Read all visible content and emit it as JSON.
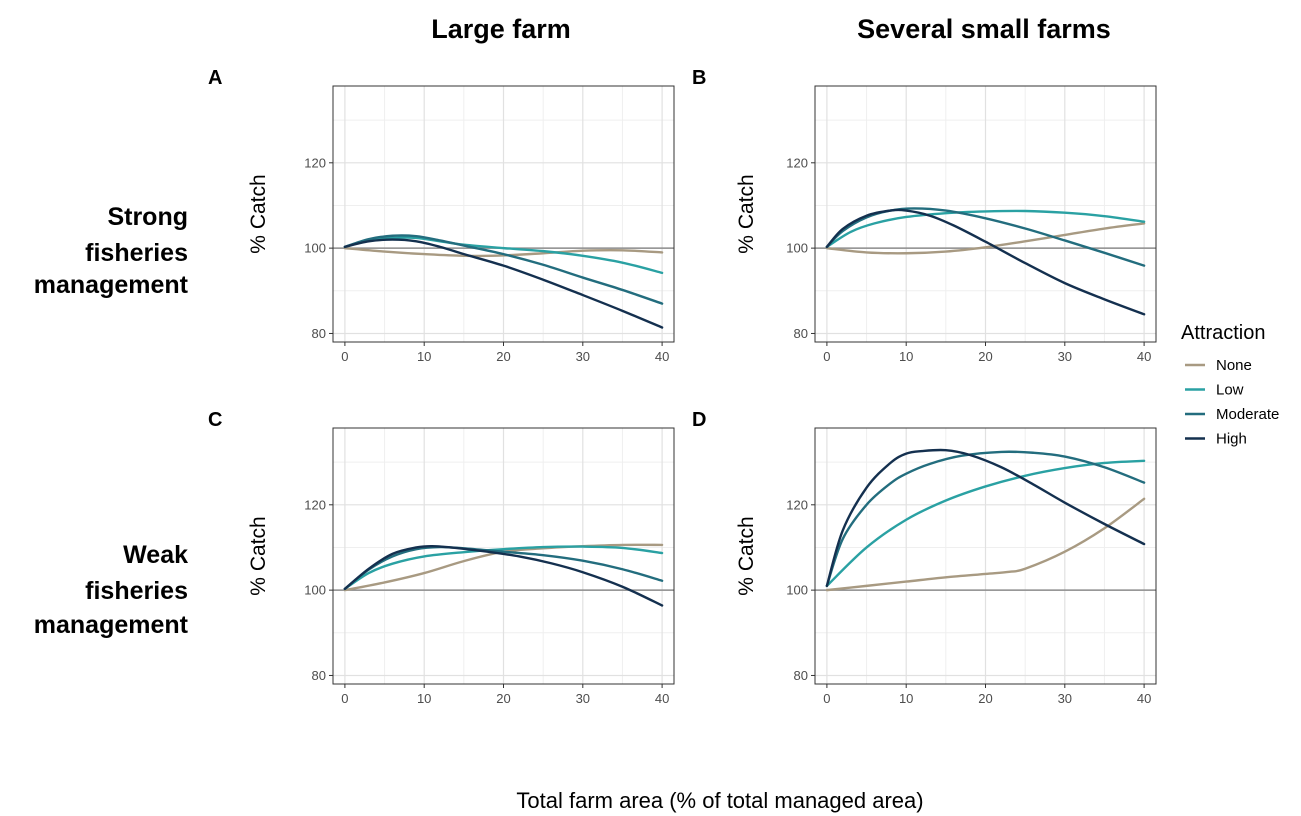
{
  "figure": {
    "column_titles": [
      "Large farm",
      "Several small farms"
    ],
    "row_titles": [
      [
        "Strong",
        "fisheries",
        "management"
      ],
      [
        "Weak",
        "fisheries",
        "management"
      ]
    ],
    "x_caption": "Total farm area (% of total managed area)",
    "legend": {
      "title": "Attraction",
      "items": [
        "None",
        "Low",
        "Moderate",
        "High"
      ]
    },
    "colors": {
      "None": "#a89a82",
      "Low": "#2aa1a3",
      "Moderate": "#236d7e",
      "High": "#14304f",
      "reference_line": "#8c8c8c",
      "grid_major": "#e1e1e1",
      "grid_minor": "#efefef",
      "panel_border": "#333333"
    }
  },
  "chart_data": [
    {
      "panel": "A",
      "type": "line",
      "column": "Large farm",
      "row": "Strong fisheries management",
      "ylabel": "% Catch",
      "xlim": [
        -1.5,
        41.5
      ],
      "ylim": [
        78,
        138
      ],
      "xticks": [
        0,
        10,
        20,
        30,
        40
      ],
      "yticks": [
        80,
        100,
        120
      ],
      "reference_y": 100,
      "grid": true,
      "series": [
        {
          "name": "None",
          "x": [
            0,
            5,
            10,
            15,
            20,
            25,
            30,
            35,
            40
          ],
          "y": [
            100,
            99.2,
            98.6,
            98.2,
            98.3,
            98.8,
            99.4,
            99.5,
            99
          ]
        },
        {
          "name": "Low",
          "x": [
            0,
            3,
            6,
            9,
            12,
            15,
            20,
            25,
            30,
            35,
            40
          ],
          "y": [
            100.3,
            101.8,
            102.4,
            102.4,
            101.6,
            100.8,
            100,
            99.3,
            98.2,
            96.6,
            94.2
          ]
        },
        {
          "name": "Moderate",
          "x": [
            0,
            3,
            6,
            9,
            12,
            15,
            20,
            25,
            30,
            35,
            40
          ],
          "y": [
            100.3,
            102.1,
            102.9,
            102.8,
            101.8,
            100.6,
            98.6,
            96.1,
            93.1,
            90.2,
            87
          ]
        },
        {
          "name": "High",
          "x": [
            0,
            3,
            6,
            9,
            12,
            15,
            20,
            25,
            30,
            35,
            40
          ],
          "y": [
            100.3,
            101.6,
            102,
            101.6,
            100.3,
            98.6,
            95.9,
            92.6,
            89,
            85.3,
            81.4
          ]
        }
      ]
    },
    {
      "panel": "B",
      "type": "line",
      "column": "Several small farms",
      "row": "Strong fisheries management",
      "ylabel": "% Catch",
      "xlim": [
        -1.5,
        41.5
      ],
      "ylim": [
        78,
        138
      ],
      "xticks": [
        0,
        10,
        20,
        30,
        40
      ],
      "yticks": [
        80,
        100,
        120
      ],
      "reference_y": 100,
      "grid": true,
      "series": [
        {
          "name": "None",
          "x": [
            0,
            5,
            10,
            15,
            20,
            25,
            30,
            35,
            40
          ],
          "y": [
            100,
            99,
            98.8,
            99.2,
            100.2,
            101.6,
            103.1,
            104.6,
            105.8
          ]
        },
        {
          "name": "Low",
          "x": [
            0,
            3,
            6,
            10,
            15,
            20,
            25,
            30,
            35,
            40
          ],
          "y": [
            100.3,
            103.8,
            105.8,
            107.3,
            108.2,
            108.6,
            108.7,
            108.3,
            107.5,
            106.2
          ]
        },
        {
          "name": "Moderate",
          "x": [
            0,
            2,
            5,
            8,
            11,
            15,
            20,
            25,
            30,
            35,
            40
          ],
          "y": [
            100.3,
            104,
            107.2,
            108.8,
            109.3,
            108.8,
            107,
            104.6,
            101.8,
            98.9,
            95.9
          ]
        },
        {
          "name": "High",
          "x": [
            0,
            2,
            5,
            8,
            10,
            13,
            16,
            20,
            25,
            30,
            35,
            40
          ],
          "y": [
            100.3,
            104.5,
            107.6,
            108.8,
            108.8,
            107.6,
            105.3,
            101.5,
            96.5,
            91.8,
            88,
            84.5
          ]
        }
      ]
    },
    {
      "panel": "C",
      "type": "line",
      "column": "Large farm",
      "row": "Weak fisheries management",
      "ylabel": "% Catch",
      "xlim": [
        -1.5,
        41.5
      ],
      "ylim": [
        78,
        138
      ],
      "xticks": [
        0,
        10,
        20,
        30,
        40
      ],
      "yticks": [
        80,
        100,
        120
      ],
      "reference_y": 100,
      "grid": true,
      "series": [
        {
          "name": "None",
          "x": [
            0,
            5,
            10,
            15,
            20,
            25,
            30,
            35,
            40
          ],
          "y": [
            100,
            101.8,
            104,
            106.8,
            109,
            109.8,
            110.3,
            110.6,
            110.6
          ]
        },
        {
          "name": "Low",
          "x": [
            0,
            3,
            6,
            10,
            15,
            20,
            25,
            30,
            35,
            40
          ],
          "y": [
            100.3,
            104,
            106.2,
            107.9,
            108.9,
            109.6,
            110.1,
            110.2,
            109.9,
            108.7
          ]
        },
        {
          "name": "Moderate",
          "x": [
            0,
            3,
            6,
            9,
            12,
            15,
            20,
            25,
            30,
            35,
            40
          ],
          "y": [
            100.3,
            104.8,
            107.9,
            109.6,
            110.1,
            109.8,
            109,
            108.2,
            106.9,
            104.9,
            102.2
          ]
        },
        {
          "name": "High",
          "x": [
            0,
            3,
            6,
            9,
            11,
            14,
            18,
            22,
            26,
            30,
            35,
            40
          ],
          "y": [
            100.3,
            105,
            108.5,
            110,
            110.3,
            109.9,
            109,
            107.9,
            106.3,
            104.2,
            100.8,
            96.4
          ]
        }
      ]
    },
    {
      "panel": "D",
      "type": "line",
      "column": "Several small farms",
      "row": "Weak fisheries management",
      "ylabel": "% Catch",
      "xlim": [
        -1.5,
        41.5
      ],
      "ylim": [
        78,
        138
      ],
      "xticks": [
        0,
        10,
        20,
        30,
        40
      ],
      "yticks": [
        80,
        100,
        120
      ],
      "reference_y": 100,
      "grid": true,
      "series": [
        {
          "name": "None",
          "x": [
            0,
            5,
            10,
            15,
            20,
            23,
            25,
            30,
            35,
            40
          ],
          "y": [
            100,
            101,
            102,
            103,
            103.8,
            104.3,
            105,
            109,
            114.5,
            121.4
          ]
        },
        {
          "name": "Low",
          "x": [
            0,
            5,
            10,
            15,
            20,
            25,
            30,
            35,
            40
          ],
          "y": [
            101,
            110,
            116.5,
            121,
            124.3,
            126.8,
            128.6,
            129.8,
            130.3
          ]
        },
        {
          "name": "Moderate",
          "x": [
            0,
            2,
            5,
            8,
            10,
            13,
            17,
            22,
            26,
            30,
            35,
            40
          ],
          "y": [
            101,
            112,
            120,
            125,
            127.3,
            129.6,
            131.5,
            132.4,
            132.2,
            131.3,
            128.8,
            125.2
          ]
        },
        {
          "name": "High",
          "x": [
            0,
            2,
            5,
            8,
            10,
            12,
            15,
            18,
            22,
            26,
            30,
            35,
            40
          ],
          "y": [
            101,
            114,
            124,
            129.8,
            132,
            132.6,
            132.8,
            131.7,
            128.8,
            124.8,
            120.5,
            115.5,
            110.8
          ]
        }
      ]
    }
  ]
}
